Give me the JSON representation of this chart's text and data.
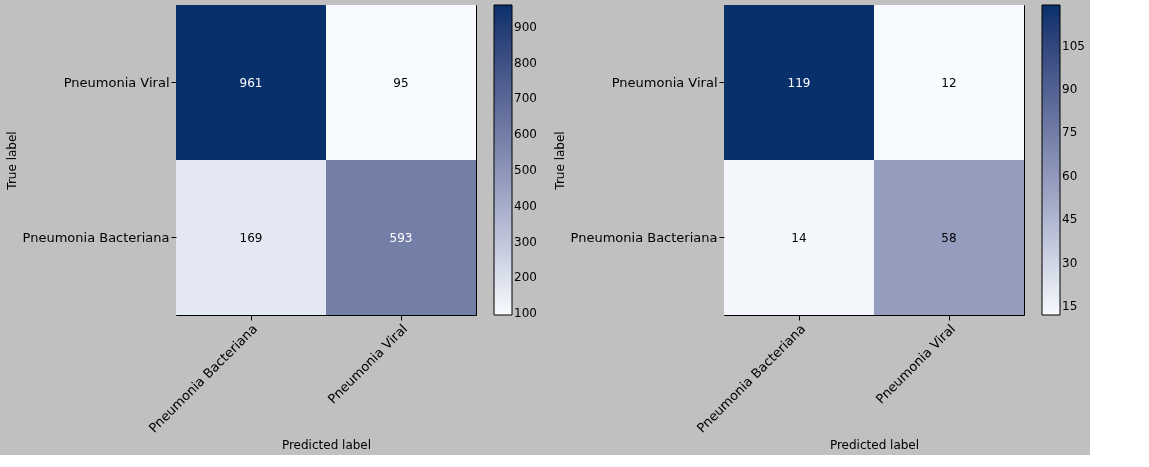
{
  "chart_data": [
    {
      "type": "heatmap",
      "xlabel": "Predicted label",
      "ylabel": "True label",
      "categories": [
        "Pneumonia Bacteriana",
        "Pneumonia Viral"
      ],
      "y_categories": [
        "Pneumonia Viral",
        "Pneumonia Bacteriana"
      ],
      "cells": [
        [
          961,
          95
        ],
        [
          169,
          593
        ]
      ],
      "clim": [
        95,
        961
      ],
      "cticks": [
        100,
        200,
        300,
        400,
        500,
        600,
        700,
        800,
        900
      ],
      "data_labels": true
    },
    {
      "type": "heatmap",
      "xlabel": "Predicted label",
      "ylabel": "True label",
      "categories": [
        "Pneumonia Bacteriana",
        "Pneumonia Viral"
      ],
      "y_categories": [
        "Pneumonia Viral",
        "Pneumonia Bacteriana"
      ],
      "cells": [
        [
          119,
          12
        ],
        [
          14,
          58
        ]
      ],
      "clim": [
        12,
        119
      ],
      "cticks": [
        15,
        30,
        45,
        60,
        75,
        90,
        105
      ],
      "data_labels": true
    }
  ]
}
